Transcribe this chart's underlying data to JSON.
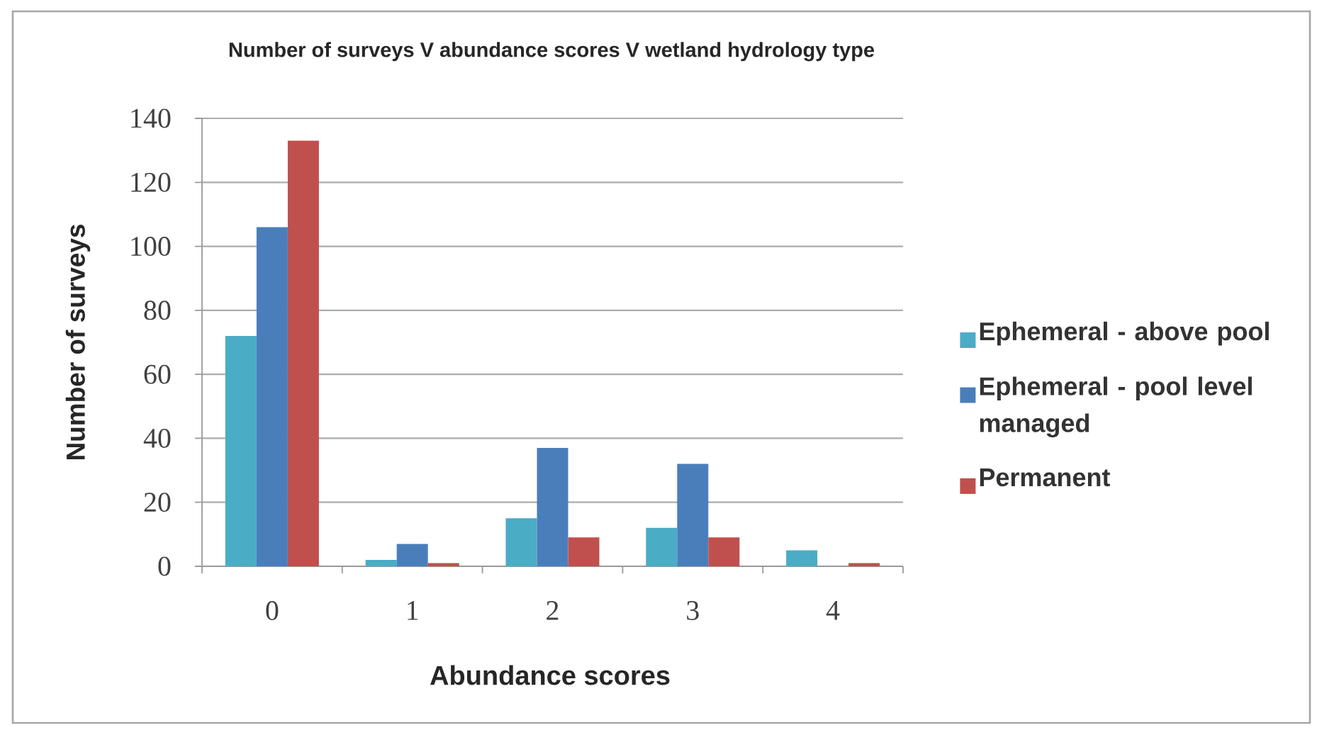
{
  "chart_data": {
    "type": "bar",
    "title": "Number of surveys V abundance scores V wetland hydrology type",
    "xlabel": "Abundance scores",
    "ylabel": "Number of surveys",
    "categories": [
      "0",
      "1",
      "2",
      "3",
      "4"
    ],
    "series": [
      {
        "name": "Ephemeral - above pool",
        "color": "#4bacc6",
        "values": [
          72,
          2,
          15,
          12,
          5
        ]
      },
      {
        "name": "Ephemeral - pool level managed",
        "color": "#4a7ebb",
        "values": [
          106,
          7,
          37,
          32,
          0
        ]
      },
      {
        "name": "Permanent",
        "color": "#c0504d",
        "values": [
          133,
          1,
          9,
          9,
          1
        ]
      }
    ],
    "ylim": [
      0,
      140
    ],
    "yticks": [
      0,
      20,
      40,
      60,
      80,
      100,
      120,
      140
    ],
    "grid": "y",
    "legend": "right"
  }
}
